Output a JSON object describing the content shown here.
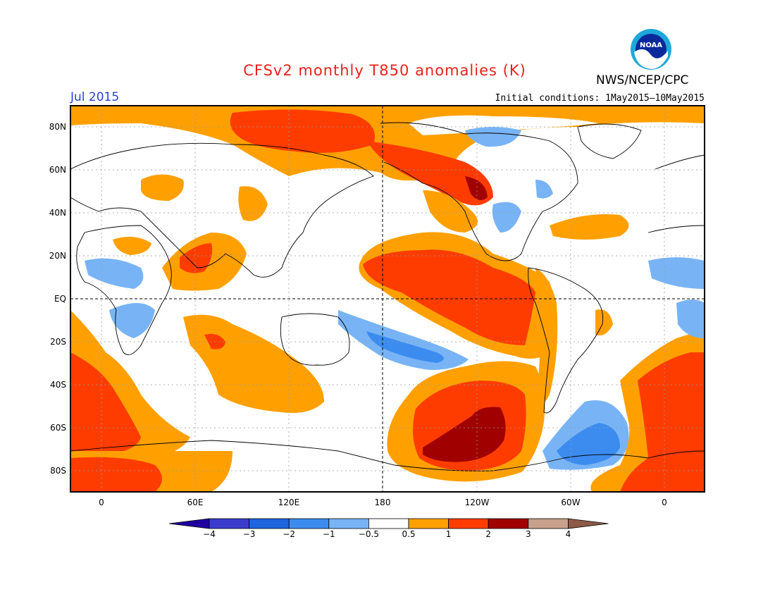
{
  "header": {
    "title": "CFSv2 monthly T850 anomalies (K)",
    "month": "Jul 2015",
    "initial_conditions": "Initial conditions: 1May2015—10May2015",
    "agency": "NWS/NCEP/CPC",
    "logo_text": "NOAA"
  },
  "map": {
    "lat_labels": [
      "80N",
      "60N",
      "40N",
      "20N",
      "EQ",
      "20S",
      "40S",
      "60S",
      "80S"
    ],
    "lon_labels": [
      "0",
      "60E",
      "120E",
      "180",
      "120W",
      "60W",
      "0"
    ],
    "grid": "dotted",
    "dateline_dashed": true,
    "equator_dashed": true
  },
  "colorbar": {
    "labels": [
      "−4",
      "−3",
      "−2",
      "−1",
      "−0.5",
      "0.5",
      "1",
      "2",
      "3",
      "4"
    ],
    "colors": [
      "#1e00a0",
      "#3c3ccc",
      "#1e64dc",
      "#3c8cf0",
      "#78b4f5",
      "#ffffff",
      "#ffa000",
      "#ff3c00",
      "#a00000",
      "#c8a08c",
      "#8c5a46"
    ]
  },
  "colors": {
    "title": "#e8231b",
    "month": "#2a3fd6",
    "orange": "#ffa000",
    "red": "#ff3c00",
    "darkred": "#a00000",
    "lightblue": "#78b4f5",
    "blue": "#3c8cf0"
  }
}
